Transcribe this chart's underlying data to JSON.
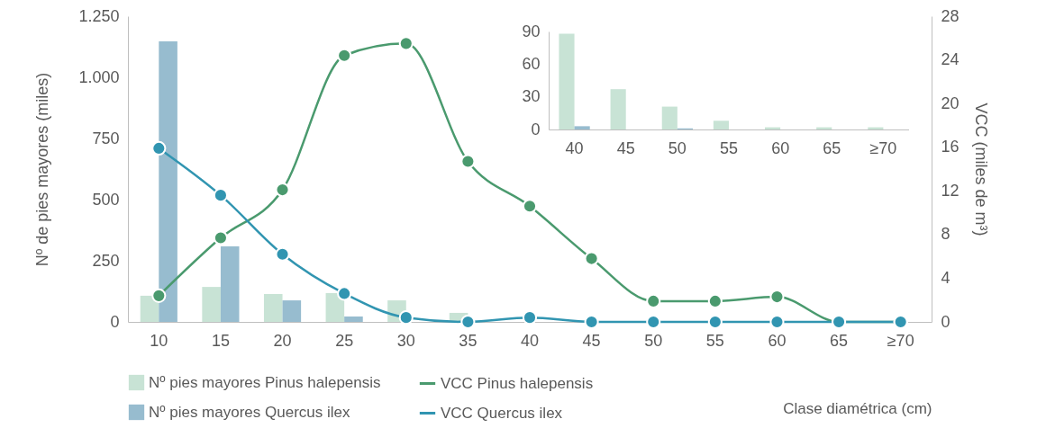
{
  "chart_data": [
    {
      "type": "bar",
      "xlabel": "Clase diamétrica (cm)",
      "ylabel": "Nº de pies mayores (miles)",
      "y2label": "VCC (miles de m³)",
      "categories": [
        "10",
        "15",
        "20",
        "25",
        "30",
        "35",
        "40",
        "45",
        "50",
        "55",
        "60",
        "65",
        "≥70"
      ],
      "ylim": [
        0,
        1250
      ],
      "yticks": [
        0,
        250,
        500,
        750,
        {
          "value": 1000,
          "label": "1.000"
        },
        {
          "value": 1250,
          "label": "1.250"
        }
      ],
      "y2lim": [
        0,
        28
      ],
      "y2ticks": [
        0,
        4,
        8,
        12,
        16,
        20,
        24,
        28
      ],
      "legend": "bottom left",
      "marker": "circle",
      "grid": false,
      "series": [
        {
          "name": "Nº pies mayores Pinus halepensis",
          "type": "bar",
          "color": "#c8e3d5",
          "values": [
            107,
            143,
            114,
            118,
            88,
            37,
            0,
            0,
            0,
            0,
            0,
            0,
            0
          ]
        },
        {
          "name": "Nº pies mayores Quercus ilex",
          "type": "bar",
          "color": "#97bccf",
          "values": [
            1147,
            309,
            88,
            22,
            0,
            0,
            0,
            0,
            0,
            0,
            0,
            0,
            0
          ]
        },
        {
          "name": "VCC Pinus halepensis",
          "type": "line",
          "axis": "y2",
          "color": "#4a9a6e",
          "values": [
            2.4,
            7.7,
            12.1,
            24.4,
            25.5,
            14.7,
            10.6,
            5.8,
            1.9,
            1.9,
            2.3,
            0,
            0
          ]
        },
        {
          "name": "VCC Quercus ilex",
          "type": "line",
          "axis": "y2",
          "color": "#3195b1",
          "values": [
            15.9,
            11.6,
            6.2,
            2.6,
            0.4,
            0,
            0.4,
            0,
            0,
            0,
            0,
            0,
            0
          ]
        }
      ]
    },
    {
      "type": "bar",
      "categories": [
        "40",
        "45",
        "50",
        "55",
        "60",
        "65",
        "≥70"
      ],
      "ylim": [
        0,
        90
      ],
      "yticks": [
        0,
        30,
        60,
        90
      ],
      "grid": false,
      "legend": false,
      "series": [
        {
          "type": "bar",
          "color": "#c8e3d5",
          "values": [
            88,
            37,
            21,
            8,
            2,
            2,
            2
          ]
        },
        {
          "type": "bar",
          "color": "#97bccf",
          "values": [
            3,
            0,
            1,
            0,
            0,
            0,
            0
          ]
        }
      ]
    }
  ]
}
